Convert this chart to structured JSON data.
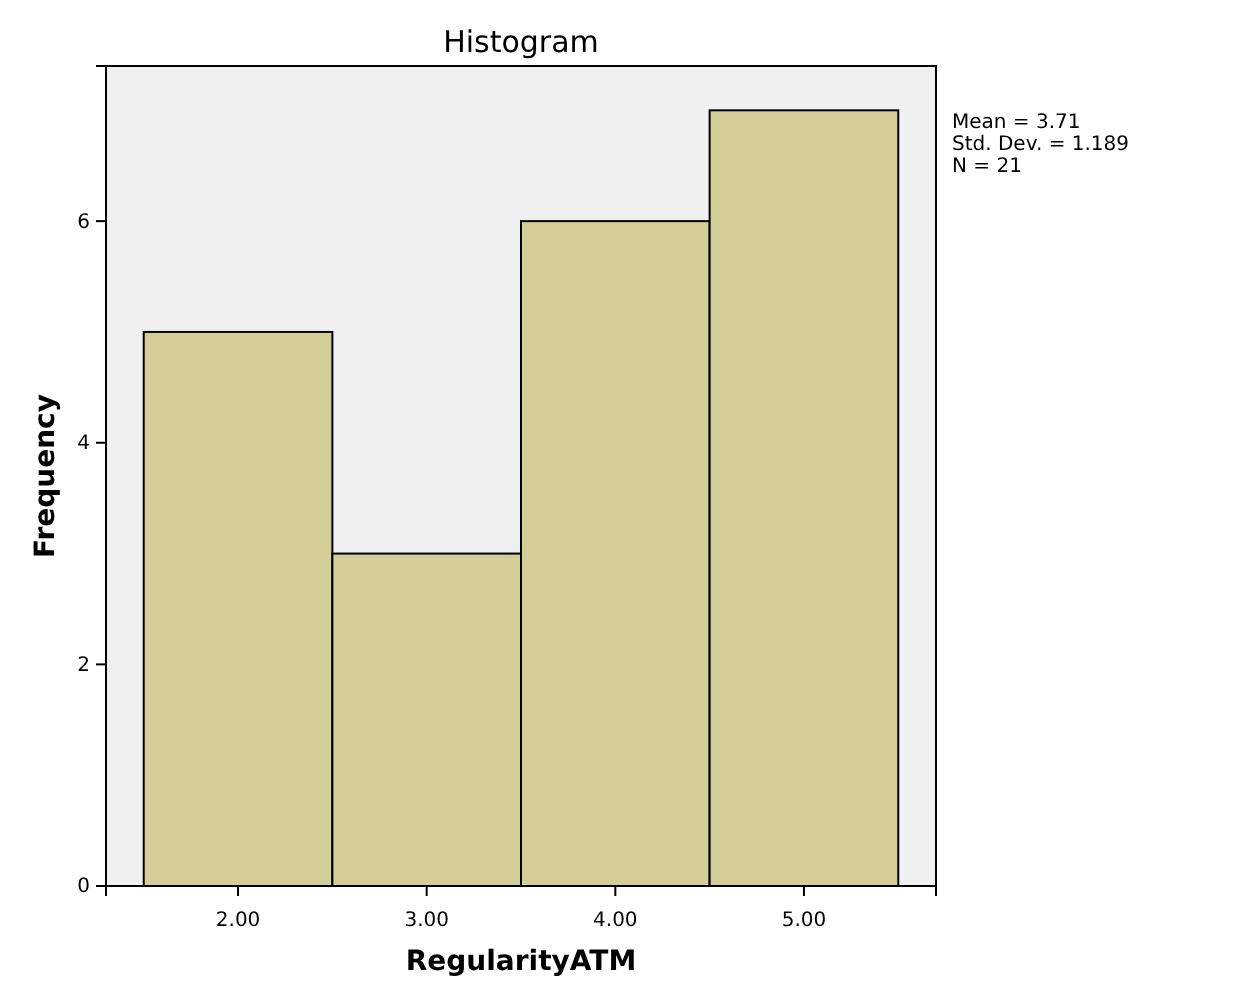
{
  "chart_data": {
    "type": "histogram",
    "title": "Histogram",
    "xlabel": "RegularityATM",
    "ylabel": "Frequency",
    "bins": [
      1.5,
      2.5,
      3.5,
      4.5,
      5.5
    ],
    "values": [
      5,
      3,
      6,
      7
    ],
    "color": "#d3ce97",
    "xlim": [
      1.3,
      5.7
    ],
    "xticks": [
      {
        "value": 2,
        "label": "2.00"
      },
      {
        "value": 3,
        "label": "3.00"
      },
      {
        "value": 4,
        "label": "4.00"
      },
      {
        "value": 5,
        "label": "5.00"
      }
    ],
    "ylim": [
      0,
      7.4
    ],
    "yticks": [
      0,
      2,
      4,
      6
    ],
    "grid": false,
    "annotations": [
      "Mean = 3.71",
      "Std. Dev. = 1.189",
      "N = 21"
    ]
  }
}
